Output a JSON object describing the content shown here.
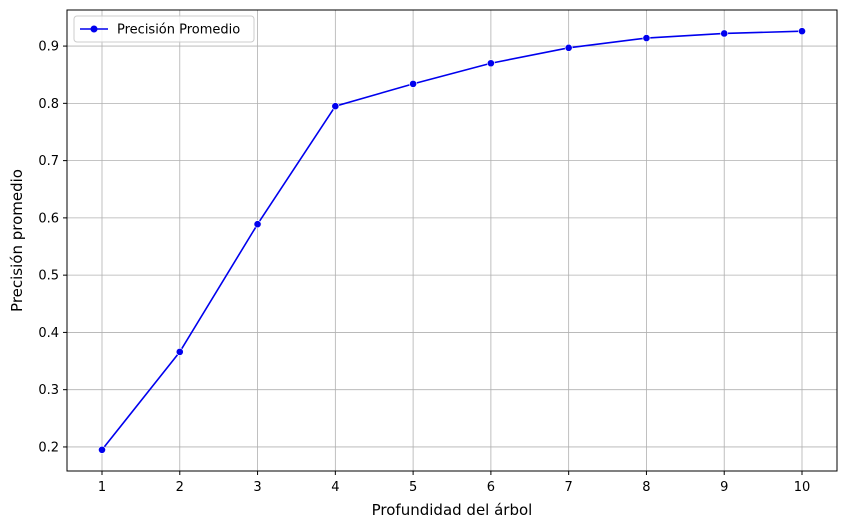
{
  "chart_data": {
    "type": "line",
    "title": "",
    "xlabel": "Profundidad del árbol",
    "ylabel": "Precisión promedio",
    "x": [
      1,
      2,
      3,
      4,
      5,
      6,
      7,
      8,
      9,
      10
    ],
    "series": [
      {
        "name": "Precisión Promedio",
        "values": [
          0.195,
          0.366,
          0.589,
          0.795,
          0.834,
          0.87,
          0.897,
          0.914,
          0.922,
          0.926
        ],
        "color": "#0000ee",
        "marker": "circle"
      }
    ],
    "x_ticks": [
      "1",
      "2",
      "3",
      "4",
      "5",
      "6",
      "7",
      "8",
      "9",
      "10"
    ],
    "y_ticks": [
      "0.2",
      "0.3",
      "0.4",
      "0.5",
      "0.6",
      "0.7",
      "0.8",
      "0.9"
    ],
    "xlim": [
      0.55,
      10.45
    ],
    "ylim": [
      0.158,
      0.963
    ],
    "grid": true,
    "legend_position": "top-left"
  }
}
